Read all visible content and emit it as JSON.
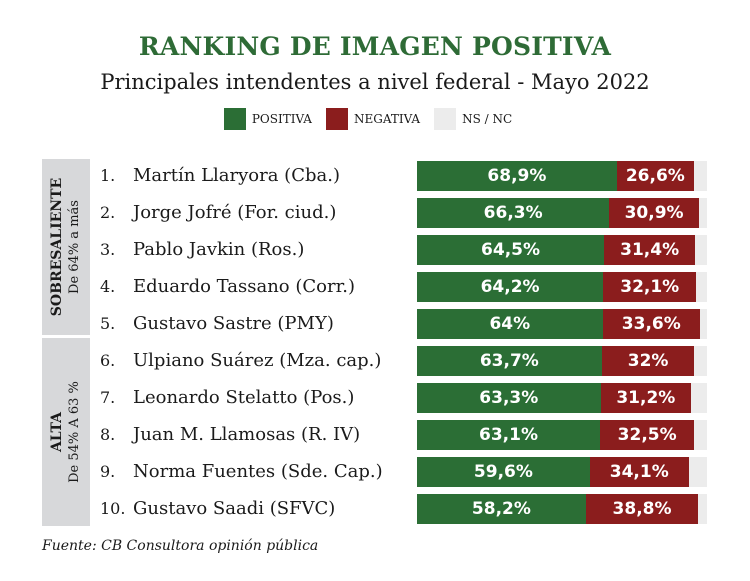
{
  "chart_data": {
    "type": "bar",
    "stacked": true,
    "orientation": "horizontal",
    "title": "RANKING DE IMAGEN POSITIVA",
    "subtitle": "Principales intendentes a nivel federal - Mayo 2022",
    "legend": [
      {
        "label": "POSITIVA",
        "color": "#2b6e35"
      },
      {
        "label": "NEGATIVA",
        "color": "#8b1d1d"
      },
      {
        "label": "NS / NC",
        "color": "#ececec"
      }
    ],
    "groups": [
      {
        "name": "SOBRESALIENTE",
        "range": "De 64% a más",
        "ranks": [
          1,
          2,
          3,
          4,
          5
        ]
      },
      {
        "name": "ALTA",
        "range": "De 54% A 63 %",
        "ranks": [
          6,
          7,
          8,
          9,
          10
        ]
      }
    ],
    "rows": [
      {
        "rank": "1.",
        "name": "Martín Llaryora (Cba.)",
        "positiva": 68.9,
        "positiva_label": "68,9%",
        "negativa": 26.6,
        "negativa_label": "26,6%"
      },
      {
        "rank": "2.",
        "name": "Jorge Jofré (For. ciud.)",
        "positiva": 66.3,
        "positiva_label": "66,3%",
        "negativa": 30.9,
        "negativa_label": "30,9%"
      },
      {
        "rank": "3.",
        "name": "Pablo Javkin (Ros.)",
        "positiva": 64.5,
        "positiva_label": "64,5%",
        "negativa": 31.4,
        "negativa_label": "31,4%"
      },
      {
        "rank": "4.",
        "name": "Eduardo Tassano (Corr.)",
        "positiva": 64.2,
        "positiva_label": "64,2%",
        "negativa": 32.1,
        "negativa_label": "32,1%"
      },
      {
        "rank": "5.",
        "name": "Gustavo Sastre (PMY)",
        "positiva": 64,
        "positiva_label": "64%",
        "negativa": 33.6,
        "negativa_label": "33,6%"
      },
      {
        "rank": "6.",
        "name": "Ulpiano Suárez (Mza. cap.)",
        "positiva": 63.7,
        "positiva_label": "63,7%",
        "negativa": 32,
        "negativa_label": "32%"
      },
      {
        "rank": "7.",
        "name": "Leonardo Stelatto (Pos.)",
        "positiva": 63.3,
        "positiva_label": "63,3%",
        "negativa": 31.2,
        "negativa_label": "31,2%"
      },
      {
        "rank": "8.",
        "name": "Juan M. Llamosas (R. IV)",
        "positiva": 63.1,
        "positiva_label": "63,1%",
        "negativa": 32.5,
        "negativa_label": "32,5%"
      },
      {
        "rank": "9.",
        "name": "Norma Fuentes (Sde. Cap.)",
        "positiva": 59.6,
        "positiva_label": "59,6%",
        "negativa": 34.1,
        "negativa_label": "34,1%"
      },
      {
        "rank": "10.",
        "name": "Gustavo Saadi (SFVC)",
        "positiva": 58.2,
        "positiva_label": "58,2%",
        "negativa": 38.8,
        "negativa_label": "38,8%"
      }
    ],
    "xlim": [
      0,
      100
    ],
    "source": "Fuente: CB Consultora opinión pública"
  }
}
